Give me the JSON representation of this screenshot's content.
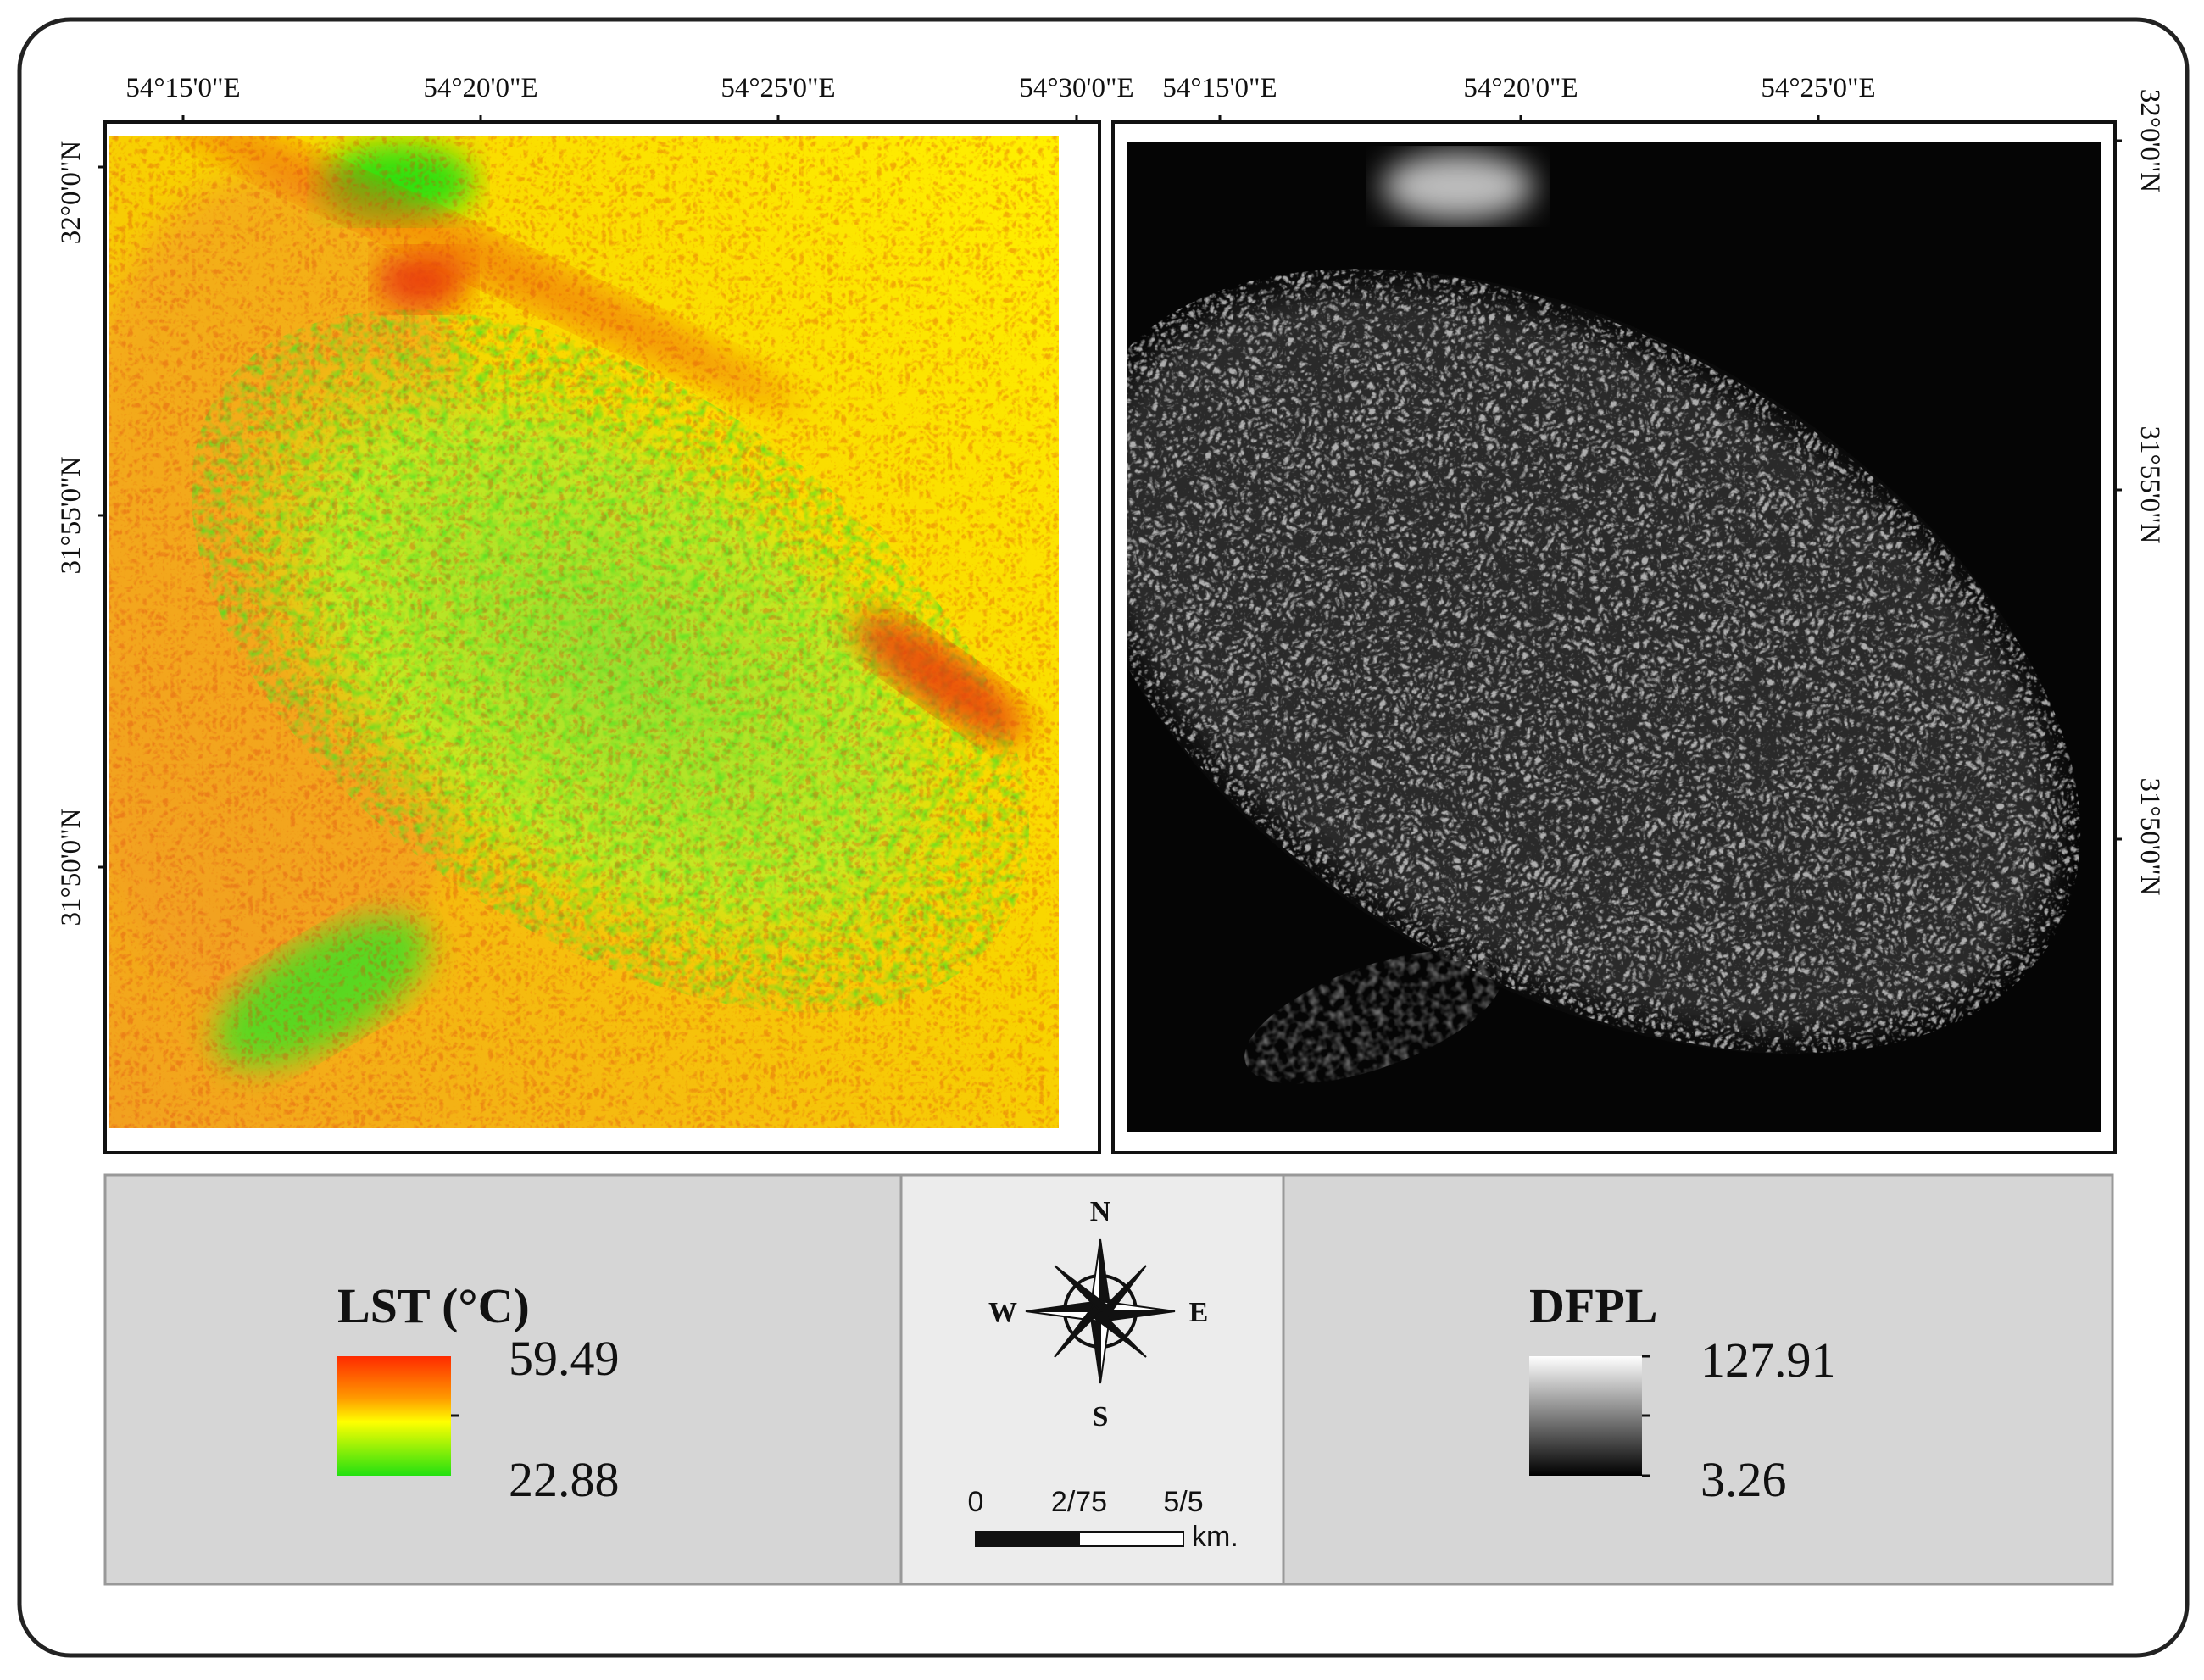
{
  "maps": [
    {
      "x_labels": [
        "54°15'0\"E",
        "54°20'0\"E",
        "54°25'0\"E",
        "54°30'0\"E"
      ],
      "y_labels": [
        "32°0'0\"N",
        "31°55'0\"N",
        "31°50'0\"N"
      ]
    },
    {
      "x_labels": [
        "54°15'0\"E",
        "54°20'0\"E",
        "54°25'0\"E"
      ],
      "y_labels": [
        "32°0'0\"N",
        "31°55'0\"N",
        "31°50'0\"N"
      ]
    }
  ],
  "legend": {
    "lst": {
      "title": "LST (°C)",
      "max": 59.49,
      "min": 22.88
    },
    "dfpl": {
      "title": "DFPL",
      "max": 127.91,
      "min": 3.26
    }
  },
  "compass": {
    "n": "N",
    "e": "E",
    "s": "S",
    "w": "W"
  },
  "scale_bar": {
    "ticks": [
      "0",
      "2/75",
      "5/5"
    ],
    "unit": "km."
  }
}
